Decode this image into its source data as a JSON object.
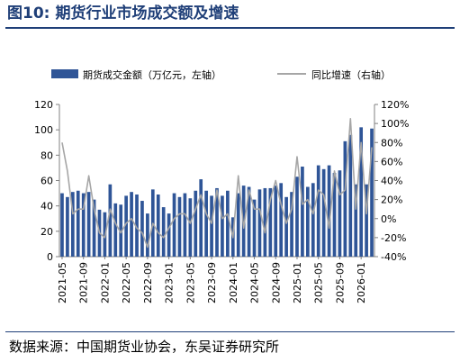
{
  "figure": {
    "number": "图10:",
    "title": "期货行业市场成交额及增速"
  },
  "source": "数据来源：中国期货业协会，东吴证券研究所",
  "chart_data": {
    "type": "bar",
    "x": [
      "2021-05",
      "2021-06",
      "2021-07",
      "2021-08",
      "2021-09",
      "2021-10",
      "2021-11",
      "2021-12",
      "2022-01",
      "2022-02",
      "2022-03",
      "2022-04",
      "2022-05",
      "2022-06",
      "2022-07",
      "2022-08",
      "2022-09",
      "2022-10",
      "2022-11",
      "2022-12",
      "2023-01",
      "2023-02",
      "2023-03",
      "2023-04",
      "2023-05",
      "2023-06",
      "2023-07",
      "2023-08",
      "2023-09",
      "2023-10",
      "2023-11",
      "2023-12",
      "2024-01",
      "2024-02",
      "2024-03",
      "2024-04",
      "2024-05",
      "2024-06",
      "2024-07",
      "2024-08",
      "2024-09",
      "2024-10",
      "2024-11",
      "2024-12",
      "2025-01",
      "2025-02",
      "2025-03",
      "2025-04",
      "2025-05",
      "2025-06",
      "2025-07",
      "2025-08",
      "2025-09",
      "2025-10",
      "2025-11",
      "2025-12",
      "2026-01",
      "2026-02",
      "2026-03"
    ],
    "tick_labels": [
      "2021-05",
      "2021-09",
      "2022-01",
      "2022-05",
      "2022-09",
      "2023-01",
      "2023-05",
      "2023-09",
      "2024-01",
      "2024-05",
      "2024-09",
      "2025-01",
      "2025-05",
      "2025-09",
      "2026-01"
    ],
    "series": [
      {
        "name": "期货成交金额（万亿元，左轴）",
        "kind": "bar",
        "axis": "left",
        "color": "#2f5597",
        "values": [
          50,
          47,
          51,
          52,
          50,
          51,
          45,
          37,
          35,
          57,
          42,
          41,
          48,
          51,
          49,
          44,
          34,
          53,
          49,
          39,
          34,
          50,
          47,
          50,
          46,
          52,
          61,
          52,
          48,
          54,
          48,
          52,
          31,
          50,
          56,
          55,
          45,
          53,
          54,
          54,
          56,
          58,
          47,
          51,
          63,
          71,
          55,
          58,
          72,
          69,
          72,
          66,
          68,
          91,
          96,
          57,
          102,
          57,
          101
        ]
      },
      {
        "name": "同比增速（右轴）",
        "kind": "line",
        "axis": "right",
        "color": "#a6a6a6",
        "values": [
          80,
          50,
          5,
          10,
          10,
          45,
          10,
          -15,
          -20,
          10,
          -5,
          -15,
          -5,
          0,
          -10,
          -15,
          -30,
          -5,
          -15,
          -20,
          -10,
          0,
          5,
          5,
          -5,
          10,
          25,
          5,
          -5,
          30,
          0,
          5,
          -20,
          45,
          -10,
          30,
          10,
          10,
          -15,
          20,
          40,
          15,
          -5,
          10,
          65,
          15,
          20,
          5,
          30,
          25,
          -10,
          50,
          25,
          30,
          105,
          10,
          80,
          5,
          75
        ]
      }
    ],
    "left_axis": {
      "min": 0,
      "max": 120,
      "step": 20,
      "ticks": [
        "0",
        "20",
        "40",
        "60",
        "80",
        "100",
        "120"
      ]
    },
    "right_axis": {
      "min": -40,
      "max": 120,
      "step": 20,
      "ticks": [
        "-40%",
        "-20%",
        "0%",
        "20%",
        "40%",
        "60%",
        "80%",
        "100%",
        "120%"
      ]
    },
    "legend_position": "top",
    "grid": false
  }
}
